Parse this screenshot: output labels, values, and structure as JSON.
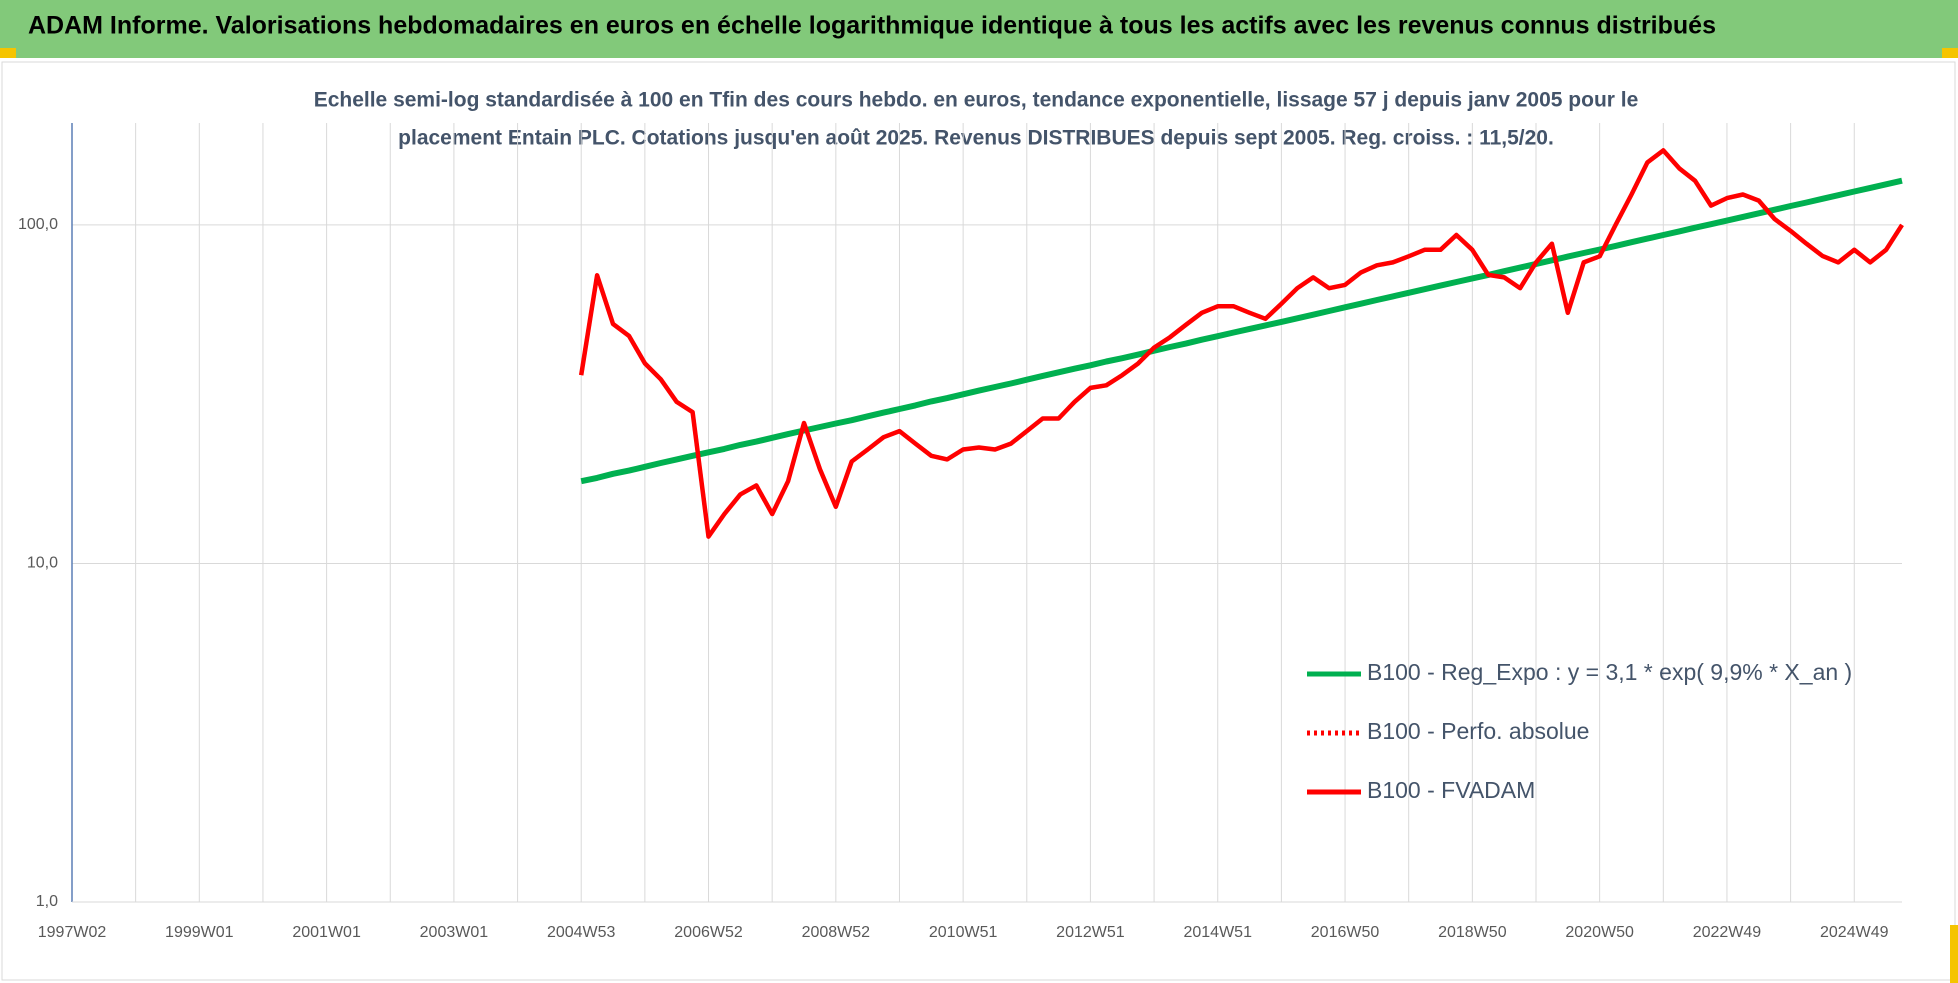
{
  "chart_data": {
    "type": "line",
    "title": "ADAM Informe. Valorisations hebdomadaires en euros en échelle logarithmique identique à tous les actifs avec les revenus connus distribués",
    "subtitle": [
      "Echelle semi-log standardisée à 100 en Tfin des cours hebdo. en euros, tendance exponentielle, lissage 57 j depuis janv 2005 pour le",
      "placement Entain PLC. Cotations jusqu'en août 2025. Revenus DISTRIBUES depuis sept 2005. Reg. croiss. : 11,5/20."
    ],
    "categories": [
      "1997W02",
      null,
      null,
      null,
      null,
      null,
      null,
      null,
      "1999W01",
      null,
      null,
      null,
      null,
      null,
      null,
      null,
      "2001W01",
      null,
      null,
      null,
      null,
      null,
      null,
      null,
      "2003W01",
      null,
      null,
      null,
      null,
      null,
      null,
      null,
      "2004W53",
      null,
      null,
      null,
      null,
      null,
      null,
      null,
      "2006W52",
      null,
      null,
      null,
      null,
      null,
      null,
      null,
      "2008W52",
      null,
      null,
      null,
      null,
      null,
      null,
      null,
      "2010W51",
      null,
      null,
      null,
      null,
      null,
      null,
      null,
      "2012W51",
      null,
      null,
      null,
      null,
      null,
      null,
      null,
      "2014W51",
      null,
      null,
      null,
      null,
      null,
      null,
      null,
      "2016W50",
      null,
      null,
      null,
      null,
      null,
      null,
      null,
      "2018W50",
      null,
      null,
      null,
      null,
      null,
      null,
      null,
      "2020W50",
      null,
      null,
      null,
      null,
      null,
      null,
      null,
      "2022W49",
      null,
      null,
      null,
      null,
      null,
      null,
      null,
      "2024W49",
      null,
      null,
      null
    ],
    "series": [
      {
        "name": "B100 - Reg_Expo : y = 3,1 * exp( 9,9% *  X_an )",
        "color": "#00b050",
        "values": [
          null,
          null,
          null,
          null,
          null,
          null,
          null,
          null,
          null,
          null,
          null,
          null,
          null,
          null,
          null,
          null,
          null,
          null,
          null,
          null,
          null,
          null,
          null,
          null,
          null,
          null,
          null,
          null,
          null,
          null,
          null,
          null,
          17.5,
          17.9,
          18.4,
          18.8,
          19.3,
          19.8,
          20.3,
          20.8,
          21.3,
          21.8,
          22.4,
          22.9,
          23.5,
          24.1,
          24.7,
          25.3,
          25.9,
          26.5,
          27.2,
          27.9,
          28.6,
          29.3,
          30.1,
          30.8,
          31.6,
          32.4,
          33.2,
          34.0,
          34.9,
          35.8,
          36.7,
          37.6,
          38.5,
          39.5,
          40.4,
          41.4,
          42.5,
          43.6,
          44.6,
          45.8,
          46.9,
          48.1,
          49.3,
          50.5,
          51.7,
          53.0,
          54.3,
          55.7,
          57.1,
          58.5,
          60.0,
          61.5,
          63.0,
          64.6,
          66.2,
          67.8,
          69.5,
          71.2,
          73.0,
          74.8,
          76.7,
          78.6,
          80.6,
          82.6,
          84.6,
          86.7,
          88.9,
          91.1,
          93.4,
          95.7,
          98.1,
          100.5,
          103.0,
          105.6,
          108.2,
          110.9,
          113.7,
          116.5,
          119.4,
          122.4,
          125.5,
          128.6,
          131.8,
          135.1
        ]
      },
      {
        "name": "B100 - Perfo. absolue",
        "color": "#ff0000",
        "dash": "dotted",
        "values": [
          null,
          null,
          null,
          null,
          null,
          null,
          null,
          null,
          null,
          null,
          null,
          null,
          null,
          null,
          null,
          null,
          null,
          null,
          null,
          null,
          null,
          null,
          null,
          null,
          null,
          null,
          null,
          null,
          null,
          null,
          null,
          null,
          36,
          71,
          51,
          47,
          39,
          35,
          30,
          28,
          12,
          14,
          16,
          17,
          14,
          17.5,
          26,
          19,
          14.7,
          20,
          21.7,
          23.6,
          24.6,
          22.6,
          20.8,
          20.3,
          21.7,
          22,
          21.7,
          22.6,
          24.6,
          26.8,
          26.8,
          30,
          33,
          33.6,
          36,
          39,
          43.4,
          46.6,
          50.7,
          55,
          57.5,
          57.5,
          55,
          52.8,
          58.5,
          65,
          70,
          65,
          66.5,
          72.4,
          76,
          77.5,
          80.8,
          84.4,
          84.4,
          93.4,
          84.4,
          71.2,
          70,
          65,
          77.5,
          88,
          55,
          77.5,
          80.8,
          100,
          123,
          153,
          166,
          147,
          135,
          114,
          120,
          123,
          118,
          104,
          96,
          88,
          81,
          77.5,
          84.4,
          77.5,
          84.4,
          100
        ]
      },
      {
        "name": "B100 - FVADAM",
        "color": "#ff0000",
        "values": [
          null,
          null,
          null,
          null,
          null,
          null,
          null,
          null,
          null,
          null,
          null,
          null,
          null,
          null,
          null,
          null,
          null,
          null,
          null,
          null,
          null,
          null,
          null,
          null,
          null,
          null,
          null,
          null,
          null,
          null,
          null,
          null,
          36,
          71,
          51,
          47,
          39,
          35,
          30,
          28,
          12,
          14,
          16,
          17,
          14,
          17.5,
          26,
          19,
          14.7,
          20,
          21.7,
          23.6,
          24.6,
          22.6,
          20.8,
          20.3,
          21.7,
          22,
          21.7,
          22.6,
          24.6,
          26.8,
          26.8,
          30,
          33,
          33.6,
          36,
          39,
          43.4,
          46.6,
          50.7,
          55,
          57.5,
          57.5,
          55,
          52.8,
          58.5,
          65,
          70,
          65,
          66.5,
          72.4,
          76,
          77.5,
          80.8,
          84.4,
          84.4,
          93.4,
          84.4,
          71.2,
          70,
          65,
          77.5,
          88,
          55,
          77.5,
          80.8,
          100,
          123,
          153,
          166,
          147,
          135,
          114,
          120,
          123,
          118,
          104,
          96,
          88,
          81,
          77.5,
          84.4,
          77.5,
          84.4,
          100
        ]
      }
    ],
    "ylog": true,
    "ylim": [
      1,
      200
    ],
    "yticks": [
      {
        "value": 1,
        "label": "1,0"
      },
      {
        "value": 10,
        "label": "10,0"
      },
      {
        "value": 100,
        "label": "100,0"
      }
    ],
    "grid": true,
    "legend": "right"
  }
}
